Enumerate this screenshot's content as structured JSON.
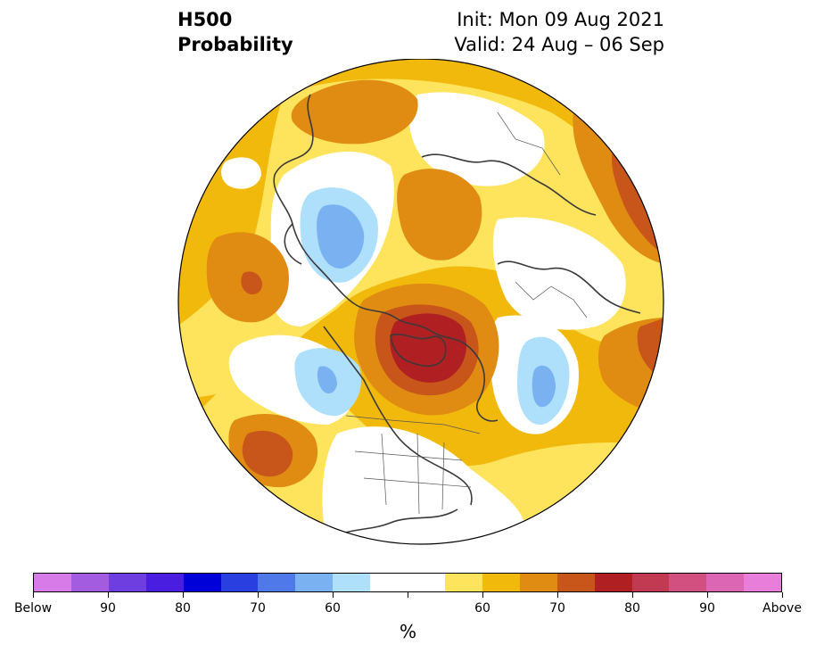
{
  "header": {
    "variable": "H500",
    "quantity": "Probability",
    "init": "Init: Mon 09 Aug 2021",
    "valid": "Valid: 24 Aug – 06 Sep"
  },
  "colorbar": {
    "unit": "%",
    "colors": [
      "#d67be8",
      "#a35be0",
      "#6f3ee0",
      "#4a1ee0",
      "#0000d8",
      "#2a3fe0",
      "#4f78e8",
      "#7ab1f0",
      "#aee0fc",
      "#ffffff",
      "#ffffff",
      "#fee35c",
      "#f2b90d",
      "#e08c12",
      "#c8561a",
      "#b01f22",
      "#c23a52",
      "#d15080",
      "#dc66b4",
      "#e87ed9"
    ],
    "labels": [
      "Below",
      "90",
      "80",
      "70",
      "60",
      "",
      "60",
      "70",
      "80",
      "90",
      "Above"
    ]
  },
  "colors": {
    "above_light": "#fee35c",
    "above_mid": "#f2b90d",
    "above_dark": "#e08c12",
    "above_strong": "#c8561a",
    "above_max": "#b01f22",
    "below_light": "#aee0fc",
    "below_mid": "#7ab1f0",
    "land_line": "#3a3a3a"
  }
}
